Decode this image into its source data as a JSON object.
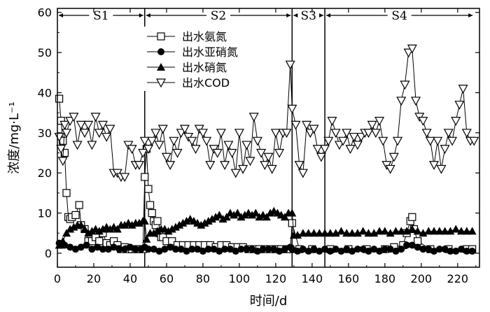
{
  "chart_data": {
    "type": "line",
    "xlabel": "时间/d",
    "ylabel": "浓度/mg·L⁻¹",
    "xlim": [
      0,
      232
    ],
    "ylim": [
      -3.5,
      61
    ],
    "xticks": [
      0,
      20,
      40,
      60,
      80,
      100,
      120,
      140,
      160,
      180,
      200,
      220
    ],
    "yticks": [
      0,
      10,
      20,
      30,
      40,
      50,
      60
    ],
    "grid": false,
    "legend_position": "top-left inside plot, starting at x≈50",
    "phases": [
      {
        "label": "S1",
        "start": 0,
        "end": 48
      },
      {
        "label": "S2",
        "start": 48,
        "end": 129
      },
      {
        "label": "S3",
        "start": 129,
        "end": 147
      },
      {
        "label": "S4",
        "start": 147,
        "end": 229
      }
    ],
    "series": [
      {
        "name": "出水氨氮",
        "marker": "open-square",
        "x": [
          1,
          2,
          3,
          4,
          5,
          6,
          7,
          8,
          10,
          12,
          13,
          15,
          17,
          19,
          21,
          23,
          25,
          27,
          29,
          31,
          33,
          35,
          37,
          39,
          41,
          43,
          45,
          47,
          48,
          49,
          50,
          51,
          52,
          53,
          54,
          55,
          56,
          57,
          58,
          60,
          63,
          66,
          69,
          72,
          75,
          78,
          81,
          84,
          87,
          90,
          93,
          96,
          99,
          102,
          105,
          108,
          111,
          114,
          117,
          120,
          123,
          126,
          128,
          129,
          133,
          140,
          150,
          160,
          170,
          180,
          185,
          190,
          192,
          194,
          195,
          196,
          198,
          205,
          215,
          225,
          228
        ],
        "y": [
          38.5,
          33,
          28,
          25,
          15,
          9,
          8.5,
          9,
          9.5,
          12,
          7,
          6,
          3,
          3,
          4,
          3,
          5,
          2.5,
          2,
          3,
          2,
          1,
          1.5,
          1,
          1,
          1,
          1,
          1,
          19,
          26,
          16,
          12,
          10,
          8,
          7,
          8,
          5,
          4,
          4,
          3,
          3,
          2,
          2,
          2,
          2,
          2,
          2,
          2,
          1.5,
          2,
          2,
          1.5,
          1.5,
          1.5,
          1,
          1,
          1,
          1,
          1,
          1,
          1,
          1,
          1,
          7.5,
          1,
          1,
          1,
          1,
          1,
          1,
          1.5,
          2,
          5,
          8,
          9,
          6,
          3,
          1,
          1,
          1,
          1
        ]
      },
      {
        "name": "出水亚硝氮",
        "marker": "filled-circle",
        "x": [
          1,
          4,
          7,
          10,
          13,
          16,
          19,
          22,
          25,
          28,
          31,
          34,
          37,
          40,
          43,
          46,
          48,
          50,
          53,
          56,
          59,
          62,
          65,
          68,
          71,
          74,
          77,
          80,
          83,
          86,
          89,
          92,
          95,
          98,
          101,
          104,
          107,
          110,
          113,
          116,
          119,
          122,
          125,
          128,
          129,
          132,
          135,
          138,
          141,
          144,
          147,
          150,
          153,
          156,
          159,
          162,
          165,
          168,
          171,
          174,
          177,
          180,
          183,
          186,
          189,
          192,
          195,
          198,
          201,
          204,
          207,
          210,
          213,
          216,
          219,
          222,
          225,
          228
        ],
        "y": [
          2.5,
          2,
          1.5,
          1,
          1.5,
          2,
          1,
          1.5,
          1,
          1,
          1.5,
          1,
          1,
          1.5,
          1,
          1,
          1.5,
          1,
          1,
          0.5,
          1,
          1.5,
          1,
          1,
          0.5,
          1,
          1,
          0.5,
          1,
          1,
          0.5,
          1,
          1,
          0.5,
          1,
          1,
          1,
          0.5,
          1,
          1,
          1,
          0.5,
          1,
          1.5,
          1,
          0.5,
          1,
          0.5,
          1,
          0.5,
          1,
          0.5,
          1,
          0.5,
          1,
          0.5,
          1,
          1,
          0.5,
          1,
          0.5,
          1,
          1,
          0.5,
          1,
          2,
          2,
          1.5,
          1,
          1,
          0.5,
          1,
          1,
          0.5,
          0.5,
          1,
          0.5,
          0.5
        ]
      },
      {
        "name": "出水硝氮",
        "marker": "filled-triangle",
        "x": [
          1,
          3,
          5,
          7,
          9,
          11,
          13,
          15,
          17,
          19,
          21,
          23,
          25,
          27,
          29,
          31,
          33,
          35,
          37,
          39,
          41,
          43,
          45,
          47,
          48,
          49,
          51,
          53,
          55,
          57,
          59,
          61,
          63,
          65,
          67,
          69,
          71,
          73,
          75,
          77,
          79,
          81,
          83,
          85,
          87,
          89,
          91,
          93,
          95,
          97,
          99,
          101,
          103,
          105,
          107,
          109,
          111,
          113,
          115,
          117,
          119,
          121,
          123,
          125,
          127,
          129,
          130,
          132,
          135,
          138,
          141,
          144,
          147,
          150,
          153,
          156,
          159,
          162,
          165,
          168,
          171,
          174,
          177,
          180,
          183,
          186,
          189,
          192,
          195,
          198,
          201,
          204,
          207,
          210,
          213,
          216,
          219,
          222,
          225,
          228
        ],
        "y": [
          2,
          3,
          5,
          6,
          6.5,
          7,
          7,
          6,
          5,
          5.5,
          6,
          5.5,
          6,
          6.5,
          6,
          6.5,
          6,
          7,
          7,
          7.5,
          7,
          7.5,
          7.5,
          8,
          8,
          3.5,
          5,
          5,
          5.5,
          6,
          6,
          5.5,
          6,
          6.5,
          7,
          7.5,
          8,
          8.5,
          8,
          7.5,
          7,
          7.5,
          8,
          8.5,
          9,
          9.5,
          8.5,
          9,
          10,
          9.5,
          10,
          9,
          9.5,
          10,
          9.5,
          10,
          9,
          9.5,
          9,
          10,
          10.5,
          10,
          9.5,
          9,
          10,
          10,
          4.5,
          4.5,
          5,
          5,
          5,
          5,
          5,
          5,
          5,
          5.5,
          5,
          5,
          5,
          5.5,
          5,
          5,
          5.5,
          5.5,
          5,
          5.5,
          5.5,
          5.5,
          6,
          5.5,
          5,
          5.5,
          5.5,
          5.5,
          5.5,
          5.5,
          6,
          5.5,
          5.5,
          5.5
        ]
      },
      {
        "name": "出水COD",
        "marker": "open-inverted-triangle",
        "x": [
          1,
          2,
          3,
          4,
          5,
          7,
          9,
          11,
          13,
          15,
          17,
          19,
          21,
          23,
          25,
          27,
          29,
          31,
          33,
          35,
          37,
          39,
          41,
          43,
          45,
          47,
          48,
          50,
          52,
          54,
          56,
          58,
          60,
          62,
          64,
          66,
          68,
          70,
          72,
          74,
          76,
          78,
          80,
          82,
          84,
          86,
          88,
          90,
          92,
          94,
          96,
          98,
          100,
          102,
          104,
          106,
          108,
          110,
          112,
          114,
          116,
          118,
          120,
          122,
          124,
          126,
          128,
          129,
          131,
          133,
          135,
          137,
          139,
          141,
          143,
          145,
          147,
          149,
          151,
          153,
          155,
          157,
          159,
          161,
          163,
          165,
          167,
          169,
          171,
          173,
          175,
          177,
          179,
          181,
          183,
          185,
          187,
          189,
          191,
          193,
          195,
          197,
          199,
          201,
          203,
          205,
          207,
          209,
          211,
          213,
          215,
          217,
          219,
          221,
          223,
          225,
          227,
          229
        ],
        "y": [
          29,
          26,
          23,
          32,
          30,
          33,
          34,
          27,
          32,
          30,
          32,
          27,
          34,
          30,
          32,
          29,
          31,
          20,
          20,
          19,
          19,
          27,
          26,
          22,
          22,
          25,
          28,
          26,
          28,
          30,
          27,
          31,
          24,
          22,
          28,
          25,
          30,
          31,
          29,
          28,
          26,
          31,
          30,
          28,
          22,
          26,
          25,
          30,
          22,
          27,
          25,
          20,
          30,
          21,
          27,
          23,
          34,
          28,
          25,
          22,
          24,
          21,
          30,
          25,
          30,
          30,
          47,
          36,
          32,
          22,
          20,
          32,
          30,
          31,
          26,
          24,
          26,
          28,
          33,
          30,
          27,
          28,
          30,
          26,
          29,
          27,
          29,
          30,
          30,
          32,
          30,
          33,
          28,
          22,
          21,
          24,
          28,
          38,
          42,
          50,
          51,
          38,
          34,
          33,
          30,
          28,
          22,
          28,
          21,
          26,
          30,
          28,
          33,
          37,
          41,
          30,
          28,
          28
        ]
      }
    ]
  }
}
